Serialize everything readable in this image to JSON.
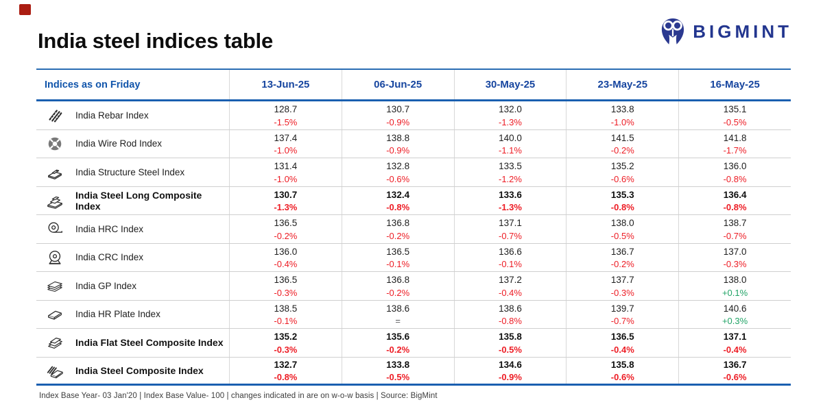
{
  "page": {
    "title": "India steel indices table"
  },
  "logo": {
    "brand": "BIGMINT",
    "icon": "bigmint-owl-icon",
    "color": "#23368f"
  },
  "accent": {
    "corner_mark_red": "#ab1d12",
    "header_blue": "#1155ab",
    "date_blue": "#16459f",
    "rule_blue": "#1a5fb0",
    "negative_red": "#ed1c24",
    "positive_green": "#21a366",
    "nochange_gray": "#58595b"
  },
  "chart_data": {
    "type": "table",
    "title": "India steel indices table",
    "row_header": "Indices as on Friday",
    "columns": [
      "13-Jun-25",
      "06-Jun-25",
      "30-May-25",
      "23-May-25",
      "16-May-25"
    ],
    "rows": [
      {
        "name": "India Rebar Index",
        "icon": "rebar-icon",
        "bold": false,
        "values": [
          "128.7",
          "130.7",
          "132.0",
          "133.8",
          "135.1"
        ],
        "changes": [
          "-1.5%",
          "-0.9%",
          "-1.3%",
          "-1.0%",
          "-0.5%"
        ]
      },
      {
        "name": "India Wire Rod Index",
        "icon": "wire-rod-icon",
        "bold": false,
        "values": [
          "137.4",
          "138.8",
          "140.0",
          "141.5",
          "141.8"
        ],
        "changes": [
          "-1.0%",
          "-0.9%",
          "-1.1%",
          "-0.2%",
          "-1.7%"
        ]
      },
      {
        "name": "India Structure Steel Index",
        "icon": "structure-steel-icon",
        "bold": false,
        "values": [
          "131.4",
          "132.8",
          "133.5",
          "135.2",
          "136.0"
        ],
        "changes": [
          "-1.0%",
          "-0.6%",
          "-1.2%",
          "-0.6%",
          "-0.8%"
        ]
      },
      {
        "name": "India Steel Long Composite Index",
        "icon": "long-composite-icon",
        "bold": true,
        "values": [
          "130.7",
          "132.4",
          "133.6",
          "135.3",
          "136.4"
        ],
        "changes": [
          "-1.3%",
          "-0.8%",
          "-1.3%",
          "-0.8%",
          "-0.8%"
        ]
      },
      {
        "name": "India HRC Index",
        "icon": "hrc-coil-icon",
        "bold": false,
        "values": [
          "136.5",
          "136.8",
          "137.1",
          "138.0",
          "138.7"
        ],
        "changes": [
          "-0.2%",
          "-0.2%",
          "-0.7%",
          "-0.5%",
          "-0.7%"
        ]
      },
      {
        "name": "India CRC Index",
        "icon": "crc-coil-icon",
        "bold": false,
        "values": [
          "136.0",
          "136.5",
          "136.6",
          "136.7",
          "137.0"
        ],
        "changes": [
          "-0.4%",
          "-0.1%",
          "-0.1%",
          "-0.2%",
          "-0.3%"
        ]
      },
      {
        "name": "India GP Index",
        "icon": "gp-sheets-icon",
        "bold": false,
        "values": [
          "136.5",
          "136.8",
          "137.2",
          "137.7",
          "138.0"
        ],
        "changes": [
          "-0.3%",
          "-0.2%",
          "-0.4%",
          "-0.3%",
          "+0.1%"
        ]
      },
      {
        "name": "India HR Plate Index",
        "icon": "hr-plate-icon",
        "bold": false,
        "values": [
          "138.5",
          "138.6",
          "138.6",
          "139.7",
          "140.6"
        ],
        "changes": [
          "-0.1%",
          "=",
          "-0.8%",
          "-0.7%",
          "+0.3%"
        ]
      },
      {
        "name": "India Flat Steel Composite Index",
        "icon": "flat-composite-icon",
        "bold": true,
        "values": [
          "135.2",
          "135.6",
          "135.8",
          "136.5",
          "137.1"
        ],
        "changes": [
          "-0.3%",
          "-0.2%",
          "-0.5%",
          "-0.4%",
          "-0.4%"
        ]
      },
      {
        "name": "India Steel Composite Index",
        "icon": "steel-composite-icon",
        "bold": true,
        "values": [
          "132.7",
          "133.8",
          "134.6",
          "135.8",
          "136.7"
        ],
        "changes": [
          "-0.8%",
          "-0.5%",
          "-0.9%",
          "-0.6%",
          "-0.6%"
        ]
      }
    ]
  },
  "footer": {
    "note": "Index Base Year- 03 Jan'20 | Index Base Value- 100 | changes indicated in are on w-o-w basis | Source: BigMint"
  }
}
